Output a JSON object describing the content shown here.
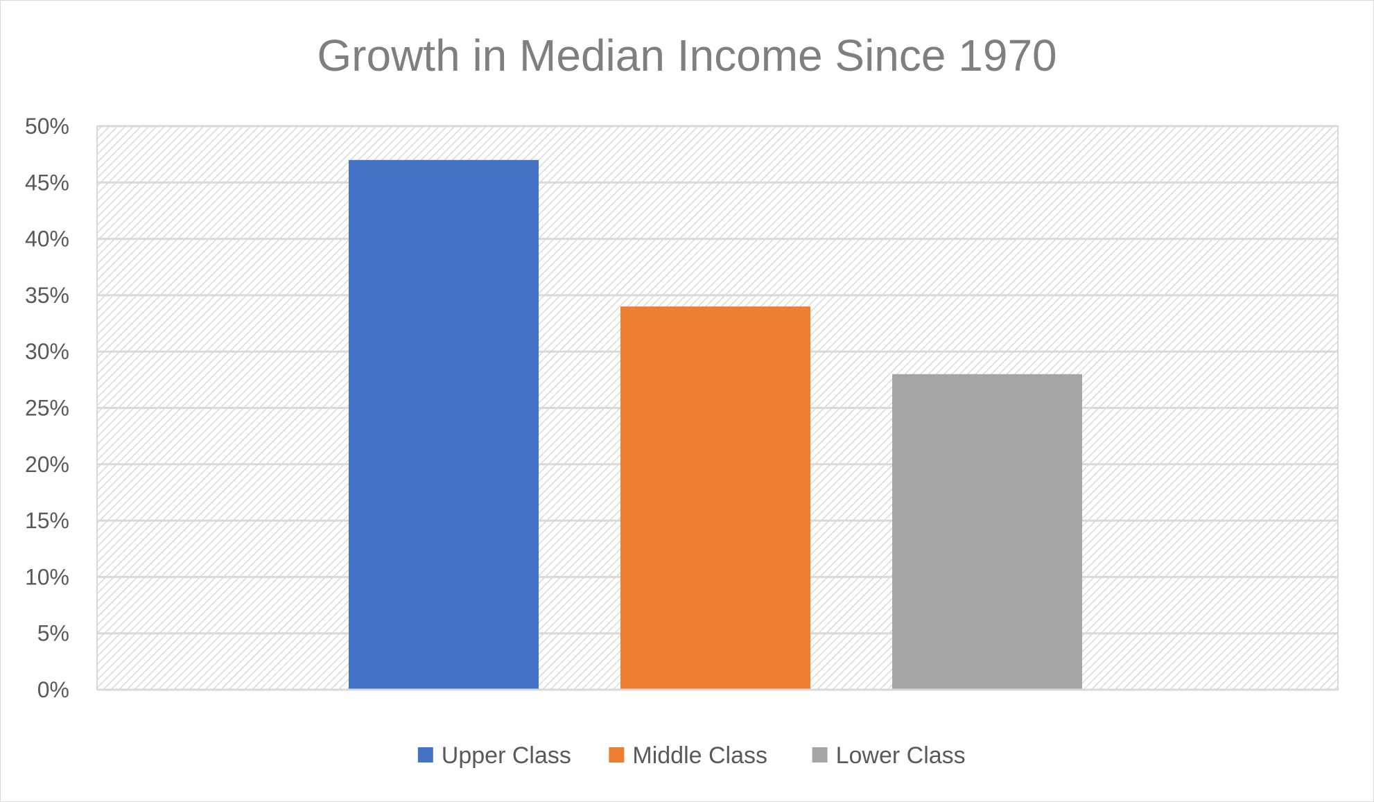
{
  "chart_data": {
    "type": "bar",
    "title": "Growth in Median Income Since 1970",
    "xlabel": "",
    "ylabel": "",
    "ylim": [
      0,
      50
    ],
    "y_tick_step": 5,
    "y_tick_format": "percent",
    "y_ticks": [
      "0%",
      "5%",
      "10%",
      "15%",
      "20%",
      "25%",
      "30%",
      "35%",
      "40%",
      "45%",
      "50%"
    ],
    "grid": true,
    "legend_position": "bottom",
    "series": [
      {
        "name": "Upper Class",
        "values": [
          47
        ],
        "color": "#4472c4"
      },
      {
        "name": "Middle Class",
        "values": [
          34
        ],
        "color": "#ed7d31"
      },
      {
        "name": "Lower Class",
        "values": [
          28
        ],
        "color": "#a5a5a5"
      }
    ],
    "colors": {
      "plot_background": "#ffffff",
      "hatch": "#d9d9d9",
      "gridline": "#d9d9d9",
      "text": "#595959",
      "title": "#7f7f7f"
    }
  }
}
